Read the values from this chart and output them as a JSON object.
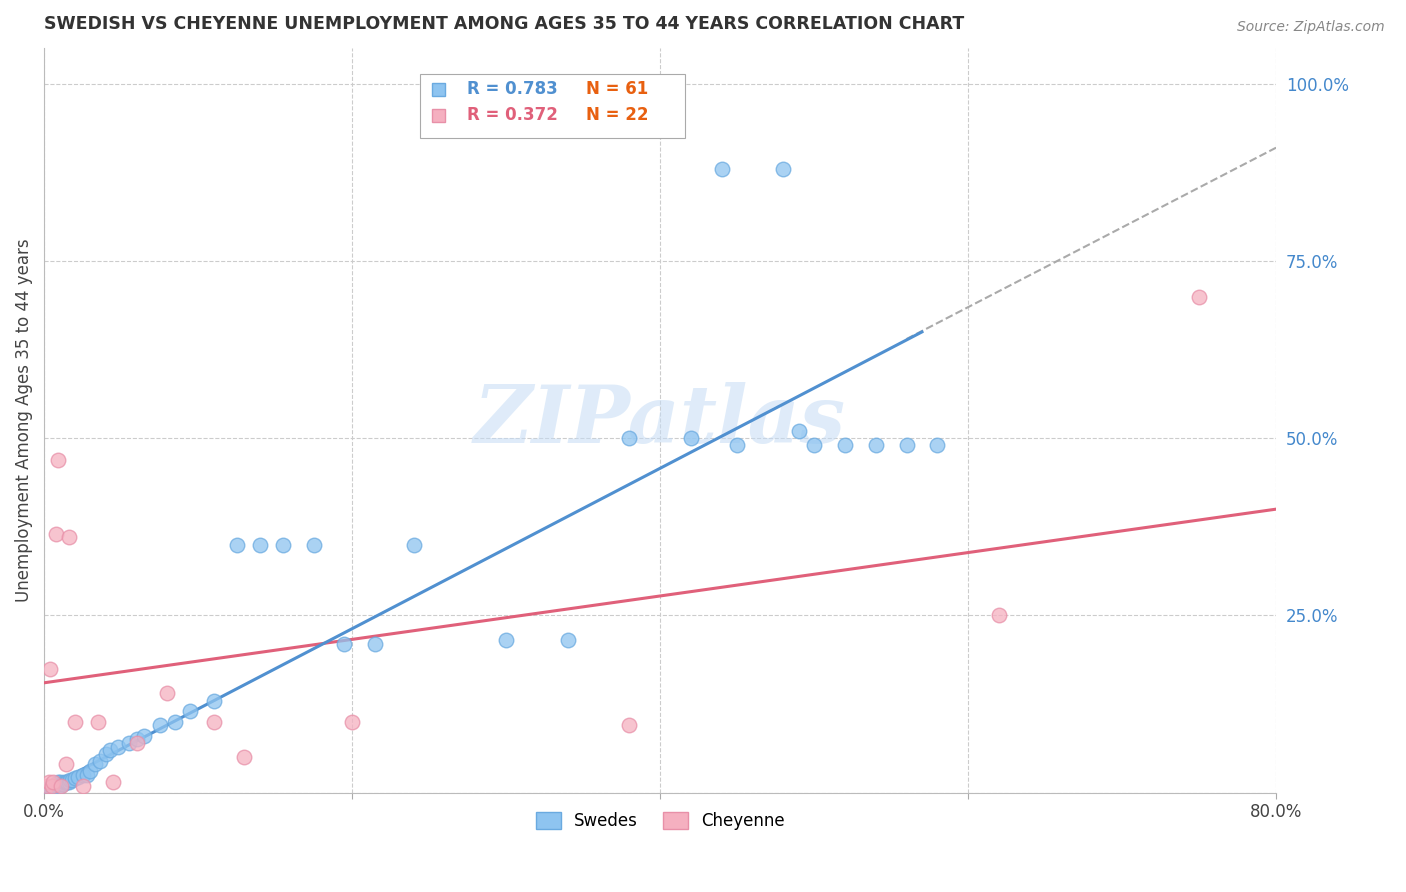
{
  "title": "SWEDISH VS CHEYENNE UNEMPLOYMENT AMONG AGES 35 TO 44 YEARS CORRELATION CHART",
  "source": "Source: ZipAtlas.com",
  "ylabel": "Unemployment Among Ages 35 to 44 years",
  "xlim": [
    0.0,
    0.8
  ],
  "ylim": [
    0.0,
    1.05
  ],
  "swedes_color": "#8EC4F0",
  "swedes_edge": "#6AAAE0",
  "cheyenne_color": "#F5B0C0",
  "cheyenne_edge": "#E890A8",
  "swedes_line_color": "#5090D0",
  "cheyenne_line_color": "#E0607A",
  "ref_line_color": "#aaaaaa",
  "background_color": "#ffffff",
  "grid_color": "#cccccc",
  "swedes_scatter_x": [
    0.002,
    0.003,
    0.004,
    0.004,
    0.005,
    0.005,
    0.006,
    0.006,
    0.007,
    0.007,
    0.008,
    0.008,
    0.009,
    0.009,
    0.01,
    0.01,
    0.011,
    0.012,
    0.013,
    0.014,
    0.015,
    0.016,
    0.017,
    0.018,
    0.02,
    0.022,
    0.025,
    0.028,
    0.03,
    0.033,
    0.036,
    0.04,
    0.043,
    0.048,
    0.055,
    0.06,
    0.065,
    0.075,
    0.085,
    0.095,
    0.11,
    0.125,
    0.14,
    0.155,
    0.175,
    0.195,
    0.215,
    0.24,
    0.3,
    0.34,
    0.38,
    0.42,
    0.45,
    0.49,
    0.44,
    0.48,
    0.5,
    0.52,
    0.54,
    0.56,
    0.58
  ],
  "swedes_scatter_y": [
    0.005,
    0.005,
    0.005,
    0.008,
    0.005,
    0.008,
    0.005,
    0.01,
    0.005,
    0.01,
    0.008,
    0.012,
    0.008,
    0.015,
    0.01,
    0.015,
    0.012,
    0.012,
    0.015,
    0.015,
    0.015,
    0.015,
    0.018,
    0.018,
    0.02,
    0.022,
    0.025,
    0.025,
    0.03,
    0.04,
    0.045,
    0.055,
    0.06,
    0.065,
    0.07,
    0.075,
    0.08,
    0.095,
    0.1,
    0.115,
    0.13,
    0.35,
    0.35,
    0.35,
    0.35,
    0.21,
    0.21,
    0.35,
    0.215,
    0.215,
    0.5,
    0.5,
    0.49,
    0.51,
    0.88,
    0.88,
    0.49,
    0.49,
    0.49,
    0.49,
    0.49
  ],
  "cheyenne_scatter_x": [
    0.002,
    0.003,
    0.004,
    0.005,
    0.006,
    0.008,
    0.009,
    0.011,
    0.014,
    0.016,
    0.02,
    0.025,
    0.035,
    0.045,
    0.06,
    0.08,
    0.11,
    0.13,
    0.2,
    0.38,
    0.62,
    0.75
  ],
  "cheyenne_scatter_y": [
    0.01,
    0.015,
    0.175,
    0.01,
    0.015,
    0.365,
    0.47,
    0.01,
    0.04,
    0.36,
    0.1,
    0.01,
    0.1,
    0.015,
    0.07,
    0.14,
    0.1,
    0.05,
    0.1,
    0.095,
    0.25,
    0.7
  ],
  "swedes_line_x": [
    0.0,
    0.57
  ],
  "swedes_line_y": [
    0.005,
    0.65
  ],
  "ref_line_x": [
    0.56,
    0.8
  ],
  "ref_line_y": [
    0.64,
    0.91
  ],
  "cheyenne_line_x": [
    0.0,
    0.8
  ],
  "cheyenne_line_y": [
    0.155,
    0.4
  ],
  "legend_swedes_R": "R = 0.783",
  "legend_swedes_N": "N = 61",
  "legend_cheyenne_R": "R = 0.372",
  "legend_cheyenne_N": "N = 22",
  "legend_label_swedes": "Swedes",
  "legend_label_cheyenne": "Cheyenne",
  "watermark": "ZIPatlas"
}
